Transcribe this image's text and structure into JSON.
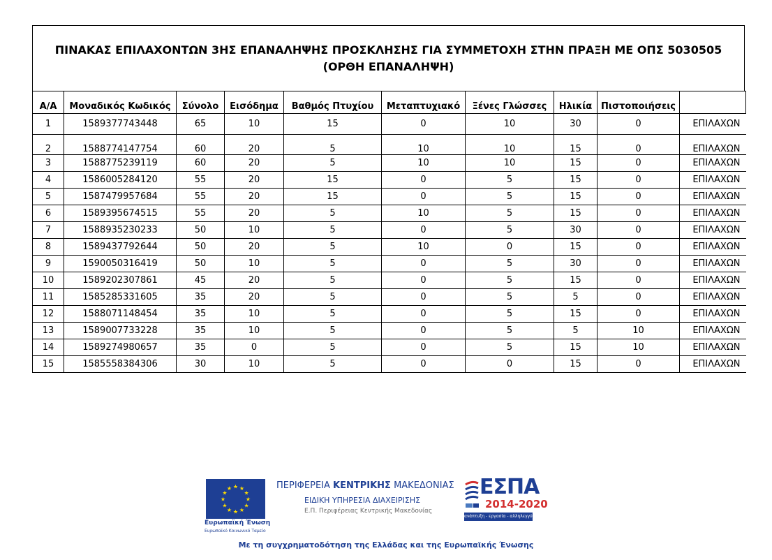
{
  "title": {
    "line1": "ΠΙΝΑΚΑΣ ΕΠΙΛΑΧΟΝΤΩΝ 3ΗΣ ΕΠΑΝΑΛΗΨΗΣ ΠΡΟΣΚΛΗΣΗΣ ΓΙΑ ΣΥΜΜΕΤΟΧΗ ΣΤΗΝ ΠΡΑΞΗ ΜΕ ΟΠΣ 5030505",
    "line2": "(ΟΡΘΗ ΕΠΑΝΑΛΗΨΗ)"
  },
  "table": {
    "headers": [
      "Α/Α",
      "Μοναδικός Κωδικός",
      "Σύνολο",
      "Εισόδημα",
      "Βαθμός Πτυχίου",
      "Μεταπτυχιακό",
      "Ξένες Γλώσσες",
      "Ηλικία",
      "Πιστοποιήσεις",
      ""
    ],
    "rows": [
      [
        "1",
        "1589377743448",
        "65",
        "10",
        "15",
        "0",
        "10",
        "30",
        "0",
        "ΕΠΙΛΑΧΩΝ"
      ],
      [
        "2",
        "1588774147754",
        "60",
        "20",
        "5",
        "10",
        "10",
        "15",
        "0",
        "ΕΠΙΛΑΧΩΝ"
      ],
      [
        "3",
        "1588775239119",
        "60",
        "20",
        "5",
        "10",
        "10",
        "15",
        "0",
        "ΕΠΙΛΑΧΩΝ"
      ],
      [
        "4",
        "1586005284120",
        "55",
        "20",
        "15",
        "0",
        "5",
        "15",
        "0",
        "ΕΠΙΛΑΧΩΝ"
      ],
      [
        "5",
        "1587479957684",
        "55",
        "20",
        "15",
        "0",
        "5",
        "15",
        "0",
        "ΕΠΙΛΑΧΩΝ"
      ],
      [
        "6",
        "1589395674515",
        "55",
        "20",
        "5",
        "10",
        "5",
        "15",
        "0",
        "ΕΠΙΛΑΧΩΝ"
      ],
      [
        "7",
        "1588935230233",
        "50",
        "10",
        "5",
        "0",
        "5",
        "30",
        "0",
        "ΕΠΙΛΑΧΩΝ"
      ],
      [
        "8",
        "1589437792644",
        "50",
        "20",
        "5",
        "10",
        "0",
        "15",
        "0",
        "ΕΠΙΛΑΧΩΝ"
      ],
      [
        "9",
        "1590050316419",
        "50",
        "10",
        "5",
        "0",
        "5",
        "30",
        "0",
        "ΕΠΙΛΑΧΩΝ"
      ],
      [
        "10",
        "1589202307861",
        "45",
        "20",
        "5",
        "0",
        "5",
        "15",
        "0",
        "ΕΠΙΛΑΧΩΝ"
      ],
      [
        "11",
        "1585285331605",
        "35",
        "20",
        "5",
        "0",
        "5",
        "5",
        "0",
        "ΕΠΙΛΑΧΩΝ"
      ],
      [
        "12",
        "1588071148454",
        "35",
        "10",
        "5",
        "0",
        "5",
        "15",
        "0",
        "ΕΠΙΛΑΧΩΝ"
      ],
      [
        "13",
        "1589007733228",
        "35",
        "10",
        "5",
        "0",
        "5",
        "5",
        "10",
        "ΕΠΙΛΑΧΩΝ"
      ],
      [
        "14",
        "1589274980657",
        "35",
        "0",
        "5",
        "0",
        "5",
        "15",
        "10",
        "ΕΠΙΛΑΧΩΝ"
      ],
      [
        "15",
        "1585558384306",
        "30",
        "10",
        "5",
        "0",
        "0",
        "15",
        "0",
        "ΕΠΙΛΑΧΩΝ"
      ]
    ]
  },
  "footer": {
    "eu_label": "Ευρωπαϊκή Ένωση",
    "eu_sub": "Ευρωπαϊκό Κοινωνικό Ταμείο",
    "region_prefix": "ΠΕΡΙΦΕΡΕΙΑ ",
    "region_bold": "ΚΕΝΤΡΙΚΗΣ",
    "region_suffix": " ΜΑΚΕΔΟΝΙΑΣ",
    "agency": "ΕΙΔΙΚΗ ΥΠΗΡΕΣΙΑ ΔΙΑΧΕΙΡΙΣΗΣ",
    "program": "Ε.Π. Περιφέρειας Κεντρικής Μακεδονίας",
    "espa_word": "ΕΣΠΑ",
    "espa_years": "2014-2020",
    "espa_slogan": "ανάπτυξη - εργασία - αλληλεγγύη",
    "cofunding": "Με τη συγχρηματοδότηση της Ελλάδας και της Ευρωπαϊκής Ένωσης"
  },
  "colors": {
    "eu_blue": "#1e3f94",
    "espa_red": "#d32f2f",
    "eu_star": "#ffdd00"
  }
}
